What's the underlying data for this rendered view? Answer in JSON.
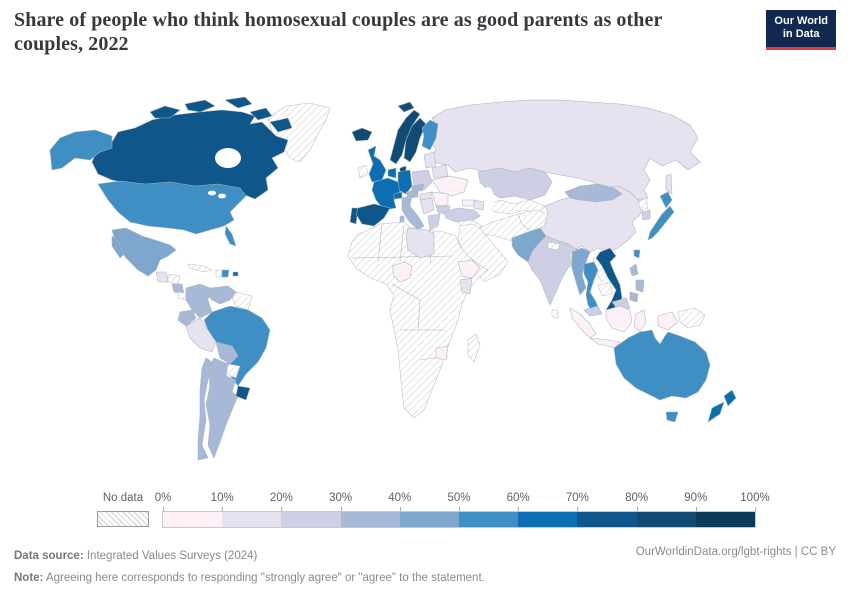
{
  "header": {
    "title": "Share of people who think homosexual couples are as good parents as other couples, 2022"
  },
  "logo": {
    "line1": "Our World",
    "line2": "in Data",
    "bg_color": "#12294f",
    "accent_color": "#e23b3b"
  },
  "legend": {
    "no_data_label": "No data",
    "tick_labels": [
      "0%",
      "10%",
      "20%",
      "30%",
      "40%",
      "50%",
      "60%",
      "70%",
      "80%",
      "90%",
      "100%"
    ],
    "bin_colors": [
      "#fdf0f7",
      "#e6e2f0",
      "#cecfe4",
      "#a7b9d7",
      "#7ea7ce",
      "#3f8ec4",
      "#0d6fb2",
      "#0f568b",
      "#114b74",
      "#0e3a5a"
    ],
    "hatch_line_color": "#cfcfcf"
  },
  "footer": {
    "source_label": "Data source:",
    "source_text": " Integrated Values Surveys (2024)",
    "attribution": "OurWorldinData.org/lgbt-rights | CC BY",
    "note_label": "Note:",
    "note_text": " Agreeing here corresponds to responding \"strongly agree\" or \"agree\" to the statement."
  },
  "chart_data": {
    "type": "choropleth_map",
    "title": "Share of people who think homosexual couples are as good parents as other couples",
    "year": 2022,
    "unit": "%",
    "bins": [
      "0-10%",
      "10-20%",
      "20-30%",
      "30-40%",
      "40-50%",
      "50-60%",
      "60-70%",
      "70-80%",
      "80-90%",
      "90-100%"
    ],
    "no_data_label": "No data",
    "countries": {
      "Canada": "70-80%",
      "United States": "50-60%",
      "Alaska (US)": "50-60%",
      "Mexico": "40-50%",
      "Guatemala": "10-20%",
      "Nicaragua": "30-40%",
      "Dominican Republic": "50-60%",
      "Puerto Rico": "60-70%",
      "Colombia": "30-40%",
      "Venezuela": "30-40%",
      "Ecuador": "30-40%",
      "Peru": "10-20%",
      "Bolivia": "30-40%",
      "Brazil": "50-60%",
      "Chile": "30-40%",
      "Argentina": "30-40%",
      "Uruguay": "70-80%",
      "Iceland": "80-90%",
      "Norway": "80-90%",
      "Sweden": "80-90%",
      "Denmark": "80-90%",
      "Finland": "50-60%",
      "United Kingdom": "60-70%",
      "Netherlands": "60-70%",
      "Germany": "60-70%",
      "France": "60-70%",
      "Switzerland": "60-70%",
      "Spain": "70-80%",
      "Portugal": "70-80%",
      "Italy": "30-40%",
      "Austria": "30-40%",
      "Czechia": "30-40%",
      "Poland": "20-30%",
      "Baltic states": "10-20%",
      "Belarus": "10-20%",
      "Ukraine": "0-10%",
      "Romania": "0-10%",
      "Hungary": "10-20%",
      "Serbia": "10-20%",
      "Bulgaria": "20-30%",
      "Greece": "20-30%",
      "Russia": "10-20%",
      "Kazakhstan": "20-30%",
      "Turkey": "20-30%",
      "Georgia": "0-10%",
      "Azerbaijan": "10-20%",
      "Pakistan": "40-50%",
      "India": "20-30%",
      "Bangladesh": "0-10%",
      "China": "10-20%",
      "Mongolia": "30-40%",
      "South Korea": "20-30%",
      "Japan": "50-60%",
      "Taiwan": "50-60%",
      "Myanmar": "40-50%",
      "Thailand": "50-60%",
      "Vietnam": "70-80%",
      "Philippines": "30-40%",
      "Malaysia": "20-30%",
      "Indonesia": "0-10%",
      "Libya": "10-20%",
      "Nigeria": "0-10%",
      "Ethiopia": "0-10%",
      "Kenya": "10-20%",
      "Zimbabwe": "0-10%",
      "Australia": "50-60%",
      "New Zealand": "60-70%"
    },
    "no_data_regions": [
      "Greenland",
      "Africa (most)",
      "Middle East",
      "Central Asia",
      "Iran",
      "Afghanistan",
      "Madagascar",
      "Paraguay",
      "Guianas",
      "Cuba",
      "Haiti",
      "Laos",
      "Cambodia",
      "North Korea",
      "Sri Lanka",
      "Nepal",
      "Papua New Guinea",
      "Ireland",
      "Costa Rica / Panama",
      "Honduras"
    ]
  }
}
